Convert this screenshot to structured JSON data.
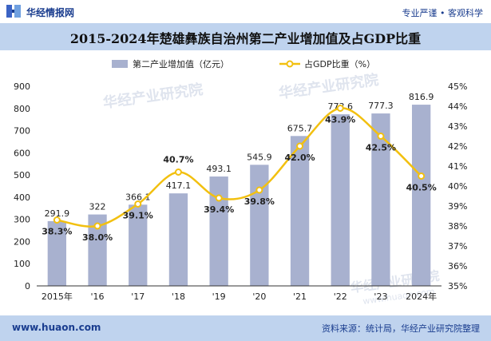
{
  "header": {
    "site_name": "华经情报网",
    "tagline": "专业严谨 • 客观科学",
    "logo_icon": "hj-logo-icon"
  },
  "title": "2015-2024年楚雄彝族自治州第二产业增加值及占GDP比重",
  "watermarks": [
    "华经产业研究院",
    "www.huaon.com"
  ],
  "footer": {
    "url": "www.huaon.com",
    "source": "资料来源：统计局，华经产业研究院整理"
  },
  "colors": {
    "bar": "#a8b1cf",
    "line": "#f2c010",
    "marker_fill": "#ffffff",
    "band": "#bfd3ee",
    "brand": "#1a3d8f"
  },
  "chart_data": {
    "type": "bar+line",
    "categories": [
      "2015年",
      "'16",
      "'17",
      "'18",
      "'19",
      "'20",
      "'21",
      "'22",
      "'23",
      "2024年"
    ],
    "series": [
      {
        "name": "第二产业增加值（亿元）",
        "type": "bar",
        "axis": "left",
        "values": [
          291.9,
          322,
          366.1,
          417.1,
          493.1,
          545.9,
          675.7,
          773.6,
          777.3,
          816.9
        ],
        "labels": [
          "291.9",
          "322",
          "366.1",
          "417.1",
          "493.1",
          "545.9",
          "675.7",
          "773.6",
          "777.3",
          "816.9"
        ]
      },
      {
        "name": "占GDP比重（%）",
        "type": "line",
        "axis": "right",
        "smooth": true,
        "values": [
          38.3,
          38.0,
          39.1,
          40.7,
          39.4,
          39.8,
          42.0,
          43.9,
          42.5,
          40.5
        ],
        "labels": [
          "38.3%",
          "38.0%",
          "39.1%",
          "40.7%",
          "39.4%",
          "39.8%",
          "42.0%",
          "43.9%",
          "42.5%",
          "40.5%"
        ]
      }
    ],
    "y_left": {
      "min": 0,
      "max": 900,
      "step": 100,
      "ticks": [
        "0",
        "100",
        "200",
        "300",
        "400",
        "500",
        "600",
        "700",
        "800",
        "900"
      ]
    },
    "y_right": {
      "min": 35,
      "max": 45,
      "step": 1,
      "ticks": [
        "35%",
        "36%",
        "37%",
        "38%",
        "39%",
        "40%",
        "41%",
        "42%",
        "43%",
        "44%",
        "45%"
      ]
    },
    "legend_position": "top-center",
    "grid": false
  }
}
